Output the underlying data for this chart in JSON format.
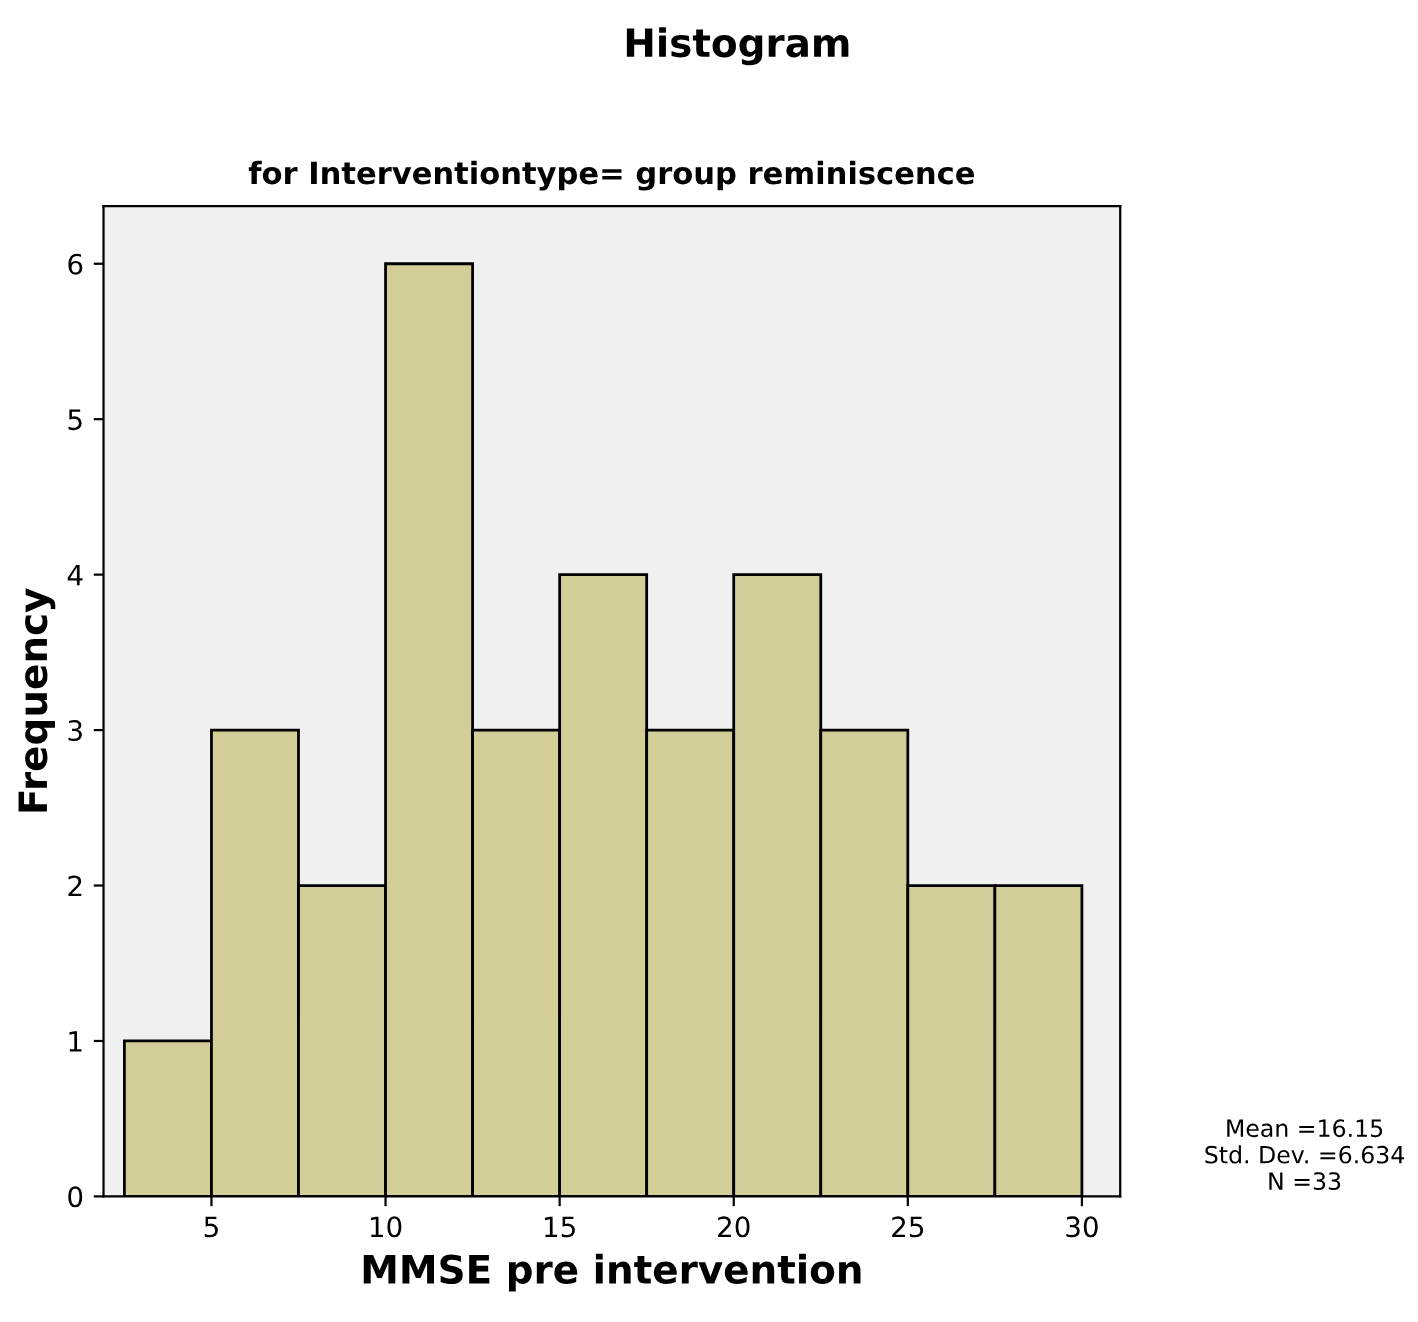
{
  "chart_data": {
    "type": "histogram",
    "title": "Histogram",
    "subtitle": "for Interventiontype= group reminiscence",
    "xlabel": "MMSE pre intervention",
    "ylabel": "Frequency",
    "bins": [
      2.5,
      5,
      7.5,
      10,
      12.5,
      15,
      17.5,
      20,
      22.5,
      25,
      27.5,
      30
    ],
    "values": [
      1,
      3,
      2,
      6,
      3,
      4,
      3,
      4,
      3,
      2,
      2
    ],
    "color": "#d3ce97",
    "xlim": [
      1.9,
      31.1
    ],
    "xticks": [
      5,
      10,
      15,
      20,
      25,
      30
    ],
    "ylim": [
      0,
      6.37
    ],
    "yticks": [
      0,
      1,
      2,
      3,
      4,
      5,
      6
    ],
    "grid": false,
    "annotations": [
      "Mean =16.15",
      "Std. Dev. =6.634",
      "N =33"
    ]
  }
}
